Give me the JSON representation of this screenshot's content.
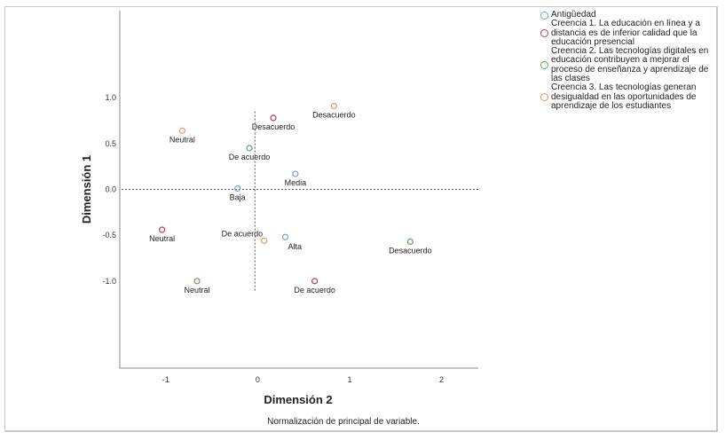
{
  "chart_data": {
    "type": "scatter",
    "title": "",
    "xlabel": "Dimensión 2",
    "ylabel": "Dimensión 1",
    "footnote": "Normalización de principal de variable.",
    "xlim": [
      -1.5,
      2.4
    ],
    "ylim": [
      -1.95,
      1.95
    ],
    "xticks": [
      -1,
      0,
      1,
      2
    ],
    "xtick_labels": [
      "-1",
      "0",
      "1",
      "2"
    ],
    "yticks": [
      1.0,
      0.5,
      0.0,
      -0.5,
      -1.0
    ],
    "ytick_labels": [
      "1.0",
      "0.5",
      "0.0",
      "-0.5",
      "-1.0"
    ],
    "grid": false,
    "reference_lines": {
      "horizontal_y": 0.0,
      "vertical_x": -0.03
    },
    "legend_placement": "top-right, outside plot",
    "series": [
      {
        "name": "Antigüedad",
        "color": "#7B9FD4",
        "points": [
          {
            "label": "Baja",
            "x": -0.22,
            "y": 0.01,
            "label_pos": "below"
          },
          {
            "label": "Media",
            "x": 0.41,
            "y": 0.17,
            "label_pos": "below"
          },
          {
            "label": "Alta",
            "x": 0.3,
            "y": -0.52,
            "label_pos": "below-right"
          }
        ]
      },
      {
        "name": "Creencia 1. La educación en línea y a distancia es de inferior calidad que la educación presencial",
        "color": "#C0385E",
        "points": [
          {
            "label": "Desacuerdo",
            "x": 0.17,
            "y": 0.78,
            "label_pos": "below"
          },
          {
            "label": "Neutral",
            "x": -1.04,
            "y": -0.44,
            "label_pos": "below"
          },
          {
            "label": "De acuerdo",
            "x": 0.62,
            "y": -1.0,
            "label_pos": "below"
          }
        ]
      },
      {
        "name": "Creencia 2. Las tecnologías digitales en educación contribuyen a mejorar el proceso de enseñanza y aprendizaje de las clases",
        "color": "#5FA35F",
        "points": [
          {
            "label": "De acuerdo",
            "x": -0.09,
            "y": 0.45,
            "label_pos": "below"
          },
          {
            "label": "Neutral",
            "x": -0.66,
            "y": -1.0,
            "label_pos": "below"
          },
          {
            "label": "Desacuerdo",
            "x": 1.66,
            "y": -0.57,
            "label_pos": "below"
          }
        ]
      },
      {
        "name": "Creencia 3. Las tecnologías generan desigualdad en las oportunidades de aprendizaje de los estudiantes",
        "color": "#E8936A",
        "points": [
          {
            "label": "Neutral",
            "x": -0.82,
            "y": 0.64,
            "label_pos": "below"
          },
          {
            "label": "Desacuerdo",
            "x": 0.83,
            "y": 0.91,
            "label_pos": "below"
          },
          {
            "label": "De acuerdo",
            "x": 0.07,
            "y": -0.56,
            "label_pos": "above-left"
          }
        ]
      }
    ]
  }
}
